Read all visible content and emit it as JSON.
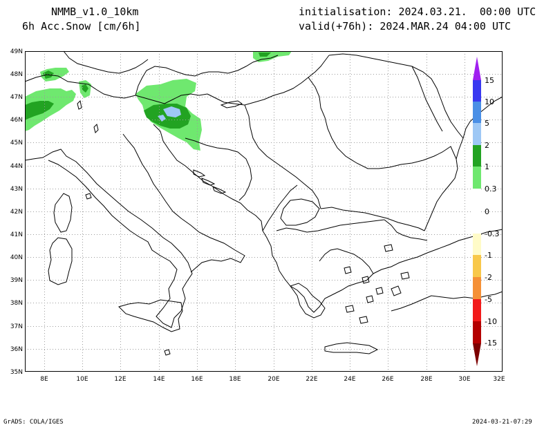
{
  "header": {
    "model": "NMMB_v1.0_10km",
    "field": "6h Acc.Snow [cm/6h]",
    "init": "initialisation: 2024.03.21.  00:00 UTC",
    "valid": "valid(+76h): 2024.MAR.24 04:00 UTC"
  },
  "footer": {
    "left": "GrADS: COLA/IGES",
    "right": "2024-03-21-07:29"
  },
  "map": {
    "region": "Balkans / Italy / Adriatic",
    "lat_labels": [
      "49N",
      "48N",
      "47N",
      "46N",
      "45N",
      "44N",
      "43N",
      "42N",
      "41N",
      "40N",
      "39N",
      "38N",
      "37N",
      "36N",
      "35N"
    ],
    "lon_labels": [
      "8E",
      "10E",
      "12E",
      "14E",
      "16E",
      "18E",
      "20E",
      "22E",
      "24E",
      "26E",
      "28E",
      "30E",
      "32E"
    ],
    "lat_range": [
      35,
      49
    ],
    "lon_range": [
      7,
      32
    ],
    "grid": "dotted",
    "snow_areas": [
      {
        "name": "alps-west",
        "level": "0.3-1"
      },
      {
        "name": "alps-west-core",
        "level": "1-2"
      },
      {
        "name": "slovenia",
        "level": "0.3-1"
      },
      {
        "name": "slovenia-core",
        "level": "1-2"
      },
      {
        "name": "slovenia-peak",
        "level": "2-5"
      },
      {
        "name": "carpathians-north",
        "level": "0.3-1"
      }
    ]
  },
  "colorbar": {
    "labels": [
      "15",
      "10",
      "5",
      "2",
      "1",
      "0.3",
      "0",
      "-0.3",
      "-1",
      "-2",
      "-5",
      "-10",
      "-15"
    ],
    "colors": [
      "#a020f0",
      "#3838f0",
      "#4a8fe6",
      "#9ec8f5",
      "#22a322",
      "#6fe86f",
      "#ffffff",
      "#ffffff",
      "#fffbc8",
      "#f8c84a",
      "#f59036",
      "#f21a1a",
      "#b40000",
      "#7c0000"
    ]
  }
}
